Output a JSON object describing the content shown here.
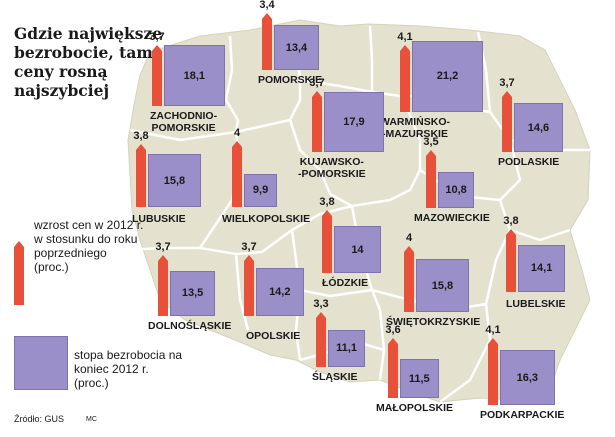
{
  "title": "Gdzie największe bezrobocie, tam ceny rosną najszybciej",
  "legend": {
    "inflation_label": "wzrost cen w 2012 r. w stosunku do roku poprzedniego (proc.)",
    "unemployment_label": "stopa bezrobocia na koniec 2012 r. (proc.)"
  },
  "source": "Źródło: GUS",
  "credit": "MC",
  "colors": {
    "bar": "#e8503a",
    "square": "#9b8fc9",
    "land": "#e4e1cf",
    "border": "#ffffff"
  },
  "regions": [
    {
      "id": "zachodniopomorskie",
      "name": "ZACHODNIO-\nPOMORSKIE",
      "inflation": 3.7,
      "inflation_label": "3,7",
      "unemployment": 18.1,
      "unemployment_label": "18,1"
    },
    {
      "id": "pomorskie",
      "name": "POMORSKIE",
      "inflation": 3.4,
      "inflation_label": "3,4",
      "unemployment": 13.4,
      "unemployment_label": "13,4"
    },
    {
      "id": "warminsko-mazurskie",
      "name": "WARMIŃSKO-\n-MAZURSKIE",
      "inflation": 4.1,
      "inflation_label": "4,1",
      "unemployment": 21.2,
      "unemployment_label": "21,2"
    },
    {
      "id": "podlaskie",
      "name": "PODLASKIE",
      "inflation": 3.7,
      "inflation_label": "3,7",
      "unemployment": 14.6,
      "unemployment_label": "14,6"
    },
    {
      "id": "kujawsko-pomorskie",
      "name": "KUJAWSKO-\n-POMORSKIE",
      "inflation": 3.7,
      "inflation_label": "3,7",
      "unemployment": 17.9,
      "unemployment_label": "17,9"
    },
    {
      "id": "lubuskie",
      "name": "LUBUSKIE",
      "inflation": 3.8,
      "inflation_label": "3,8",
      "unemployment": 15.8,
      "unemployment_label": "15,8"
    },
    {
      "id": "wielkopolskie",
      "name": "WIELKOPOLSKIE",
      "inflation": 4.0,
      "inflation_label": "4",
      "unemployment": 9.9,
      "unemployment_label": "9,9"
    },
    {
      "id": "mazowieckie",
      "name": "MAZOWIECKIE",
      "inflation": 3.5,
      "inflation_label": "3,5",
      "unemployment": 10.8,
      "unemployment_label": "10,8"
    },
    {
      "id": "lodzkie",
      "name": "ŁÓDZKIE",
      "inflation": 3.8,
      "inflation_label": "3,8",
      "unemployment": 14.0,
      "unemployment_label": "14"
    },
    {
      "id": "dolnoslaskie",
      "name": "DOLNOŚLĄSKIE",
      "inflation": 3.7,
      "inflation_label": "3,7",
      "unemployment": 13.5,
      "unemployment_label": "13,5"
    },
    {
      "id": "opolskie",
      "name": "OPOLSKIE",
      "inflation": 3.7,
      "inflation_label": "3,7",
      "unemployment": 14.2,
      "unemployment_label": "14,2"
    },
    {
      "id": "swietokrzyskie",
      "name": "ŚWIĘTOKRZYSKIE",
      "inflation": 4.0,
      "inflation_label": "4",
      "unemployment": 15.8,
      "unemployment_label": "15,8"
    },
    {
      "id": "lubelskie",
      "name": "LUBELSKIE",
      "inflation": 3.8,
      "inflation_label": "3,8",
      "unemployment": 14.1,
      "unemployment_label": "14,1"
    },
    {
      "id": "slaskie",
      "name": "ŚLĄSKIE",
      "inflation": 3.3,
      "inflation_label": "3,3",
      "unemployment": 11.1,
      "unemployment_label": "11,1"
    },
    {
      "id": "malopolskie",
      "name": "MAŁOPOLSKIE",
      "inflation": 3.6,
      "inflation_label": "3,6",
      "unemployment": 11.5,
      "unemployment_label": "11,5"
    },
    {
      "id": "podkarpackie",
      "name": "PODKARPACKIE",
      "inflation": 4.1,
      "inflation_label": "4,1",
      "unemployment": 16.3,
      "unemployment_label": "16,3"
    }
  ]
}
